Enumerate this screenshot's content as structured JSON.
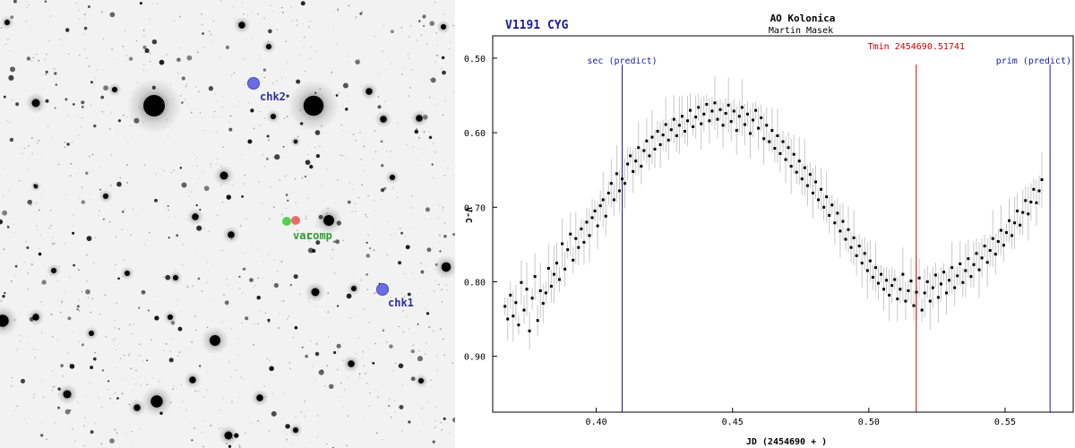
{
  "starfield": {
    "labels": {
      "chk2": "chk2",
      "chk1": "chk1",
      "var": "var",
      "comp": "comp"
    },
    "colors": {
      "check": "#6b6be6",
      "check_label": "#2f2f9c",
      "var": "#ee6a6a",
      "comp": "#4fd34f",
      "var_comp_label": "#2f9c2f"
    }
  },
  "chart_data": {
    "type": "scatter",
    "star_name": "V1191 CYG",
    "title": "AO Kolonica",
    "subtitle": "Martin Masek",
    "xlabel": "JD (2454690 + )",
    "ylabel": "V-C",
    "xlim": [
      0.362,
      0.575
    ],
    "ylim": [
      0.975,
      0.47
    ],
    "y_inverted": true,
    "x_ticks": [
      0.4,
      0.45,
      0.5,
      0.55
    ],
    "x_tick_labels": [
      "0.40",
      "0.45",
      "0.50",
      "0.55"
    ],
    "y_ticks": [
      0.5,
      0.6,
      0.7,
      0.8,
      0.9
    ],
    "y_tick_labels": [
      "0.50",
      "0.60",
      "0.70",
      "0.80",
      "0.90"
    ],
    "grid": false,
    "legend": "none",
    "markers": [
      {
        "name": "sec",
        "label": "sec (predict)",
        "x": 0.4095,
        "color": "#1a1aa0"
      },
      {
        "name": "tmin",
        "label": "Tmin 2454690.51741",
        "x": 0.51741,
        "color": "#cc0000"
      },
      {
        "name": "prim",
        "label": "prim (predict)",
        "x": 0.5665,
        "color": "#1a1aa0"
      }
    ],
    "colors": {
      "star_name": "#1a1a9c",
      "points": "#000000",
      "errorbars": "#c8c8c8",
      "axes": "#000000"
    },
    "series": [
      {
        "x": [
          0.3665,
          0.3675,
          0.3685,
          0.3695,
          0.3705,
          0.3715,
          0.3725,
          0.3735,
          0.3745,
          0.3755,
          0.3765,
          0.3775,
          0.3785,
          0.3795,
          0.3805,
          0.3815,
          0.3825,
          0.3835,
          0.3845,
          0.3855,
          0.3865,
          0.3875,
          0.3885,
          0.3895,
          0.3905,
          0.3915,
          0.3925,
          0.3935,
          0.3945,
          0.3955,
          0.3965,
          0.3975,
          0.3985,
          0.3995,
          0.4005,
          0.4015,
          0.4025,
          0.4035,
          0.4045,
          0.4055,
          0.4065,
          0.4075,
          0.4085,
          0.4095,
          0.4105,
          0.4115,
          0.4125,
          0.4135,
          0.4145,
          0.4155,
          0.4165,
          0.4175,
          0.4185,
          0.4195,
          0.4205,
          0.4215,
          0.4225,
          0.4235,
          0.4245,
          0.4255,
          0.4265,
          0.4275,
          0.4285,
          0.4295,
          0.4305,
          0.4315,
          0.4325,
          0.4335,
          0.4345,
          0.4355,
          0.4365,
          0.4375,
          0.4385,
          0.4395,
          0.4405,
          0.4415,
          0.4425,
          0.4435,
          0.4445,
          0.4455,
          0.4465,
          0.4475,
          0.4485,
          0.4495,
          0.4505,
          0.4515,
          0.4525,
          0.4535,
          0.4545,
          0.4555,
          0.4565,
          0.4575,
          0.4585,
          0.4595,
          0.4605,
          0.4615,
          0.4625,
          0.4635,
          0.4645,
          0.4655,
          0.4665,
          0.4675,
          0.4685,
          0.4695,
          0.4705,
          0.4715,
          0.4725,
          0.4735,
          0.4745,
          0.4755,
          0.4765,
          0.4775,
          0.4785,
          0.4795,
          0.4805,
          0.4815,
          0.4825,
          0.4835,
          0.4845,
          0.4855,
          0.4865,
          0.4875,
          0.4885,
          0.4895,
          0.4905,
          0.4915,
          0.4925,
          0.4935,
          0.4945,
          0.4955,
          0.4965,
          0.4975,
          0.4985,
          0.4995,
          0.5005,
          0.5015,
          0.5025,
          0.5035,
          0.5045,
          0.5055,
          0.5065,
          0.5075,
          0.5085,
          0.5095,
          0.5105,
          0.5115,
          0.5125,
          0.5135,
          0.5145,
          0.5155,
          0.5165,
          0.5175,
          0.5185,
          0.5195,
          0.5205,
          0.5215,
          0.5225,
          0.5235,
          0.5245,
          0.5255,
          0.5265,
          0.5275,
          0.5285,
          0.5295,
          0.5305,
          0.5315,
          0.5325,
          0.5335,
          0.5345,
          0.5355,
          0.5365,
          0.5375,
          0.5385,
          0.5395,
          0.5405,
          0.5415,
          0.5425,
          0.5435,
          0.5445,
          0.5455,
          0.5465,
          0.5475,
          0.5485,
          0.5495,
          0.5505,
          0.5515,
          0.5525,
          0.5535,
          0.5545,
          0.5555,
          0.5565,
          0.5575,
          0.5585,
          0.5595,
          0.5605,
          0.5615,
          0.5625,
          0.5635
        ],
        "y": [
          0.833,
          0.85,
          0.818,
          0.846,
          0.828,
          0.858,
          0.801,
          0.838,
          0.81,
          0.866,
          0.822,
          0.793,
          0.852,
          0.812,
          0.829,
          0.815,
          0.782,
          0.806,
          0.79,
          0.775,
          0.797,
          0.749,
          0.783,
          0.757,
          0.736,
          0.771,
          0.742,
          0.754,
          0.729,
          0.747,
          0.72,
          0.738,
          0.714,
          0.705,
          0.725,
          0.698,
          0.69,
          0.712,
          0.681,
          0.668,
          0.69,
          0.655,
          0.678,
          0.662,
          0.668,
          0.642,
          0.631,
          0.652,
          0.638,
          0.62,
          0.645,
          0.624,
          0.611,
          0.631,
          0.606,
          0.622,
          0.598,
          0.616,
          0.603,
          0.589,
          0.61,
          0.596,
          0.582,
          0.604,
          0.59,
          0.578,
          0.598,
          0.584,
          0.57,
          0.592,
          0.579,
          0.566,
          0.588,
          0.575,
          0.562,
          0.584,
          0.571,
          0.56,
          0.582,
          0.569,
          0.59,
          0.574,
          0.563,
          0.585,
          0.571,
          0.597,
          0.578,
          0.566,
          0.589,
          0.575,
          0.601,
          0.583,
          0.57,
          0.594,
          0.58,
          0.608,
          0.59,
          0.612,
          0.597,
          0.621,
          0.604,
          0.628,
          0.612,
          0.636,
          0.62,
          0.645,
          0.629,
          0.653,
          0.638,
          0.662,
          0.647,
          0.671,
          0.656,
          0.681,
          0.666,
          0.69,
          0.676,
          0.7,
          0.686,
          0.711,
          0.697,
          0.721,
          0.708,
          0.732,
          0.719,
          0.743,
          0.73,
          0.754,
          0.741,
          0.765,
          0.752,
          0.775,
          0.762,
          0.785,
          0.772,
          0.794,
          0.781,
          0.802,
          0.79,
          0.81,
          0.798,
          0.818,
          0.805,
          0.797,
          0.823,
          0.81,
          0.79,
          0.826,
          0.812,
          0.799,
          0.832,
          0.814,
          0.795,
          0.838,
          0.815,
          0.8,
          0.826,
          0.808,
          0.791,
          0.821,
          0.803,
          0.787,
          0.815,
          0.798,
          0.781,
          0.808,
          0.792,
          0.776,
          0.801,
          0.785,
          0.769,
          0.793,
          0.777,
          0.762,
          0.784,
          0.768,
          0.752,
          0.774,
          0.758,
          0.742,
          0.763,
          0.746,
          0.731,
          0.751,
          0.734,
          0.718,
          0.738,
          0.721,
          0.705,
          0.724,
          0.707,
          0.691,
          0.709,
          0.693,
          0.676,
          0.694,
          0.678,
          0.663
        ]
      }
    ]
  }
}
